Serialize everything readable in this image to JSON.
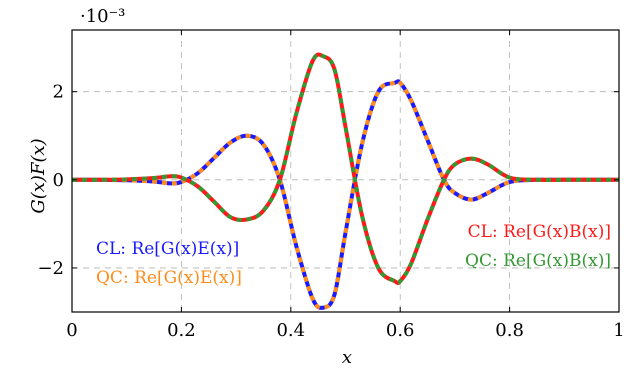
{
  "chart_data": {
    "type": "line",
    "xlabel": "x",
    "ylabel": "G(x)F(x)",
    "y_multiplier": "·10⁻³",
    "xlim": [
      0,
      1
    ],
    "ylim": [
      -3.0,
      3.4
    ],
    "grid": true,
    "grid_style": "dashed",
    "x_ticks": [
      "0",
      "0.2",
      "0.4",
      "0.6",
      "0.8",
      "1"
    ],
    "x_tick_values": [
      0,
      0.2,
      0.4,
      0.6,
      0.8,
      1
    ],
    "y_ticks": [
      "−2",
      "0",
      "2"
    ],
    "y_tick_values": [
      -2,
      0,
      2
    ],
    "series": [
      {
        "name": "CL: Re[G(x)E(x)]",
        "color": "#1a1aff",
        "style": "solid",
        "x": [
          0,
          0.05,
          0.1,
          0.15,
          0.18,
          0.2,
          0.23,
          0.26,
          0.29,
          0.32,
          0.35,
          0.38,
          0.41,
          0.44,
          0.46,
          0.48,
          0.5,
          0.53,
          0.56,
          0.59,
          0.6,
          0.62,
          0.65,
          0.68,
          0.7,
          0.73,
          0.76,
          0.8,
          0.85,
          0.9,
          0.95,
          1.0
        ],
        "y": [
          0,
          0,
          -0.01,
          -0.04,
          -0.08,
          -0.05,
          0.15,
          0.5,
          0.85,
          1.0,
          0.8,
          0.0,
          -1.5,
          -2.7,
          -2.9,
          -2.6,
          -1.2,
          0.8,
          2.0,
          2.2,
          2.2,
          1.8,
          0.9,
          0.0,
          -0.3,
          -0.45,
          -0.3,
          -0.05,
          0,
          0,
          0,
          0
        ]
      },
      {
        "name": "QC: Re[G(x)E(x)]",
        "color": "#ff8c1a",
        "style": "dashed",
        "x": [
          0,
          0.05,
          0.1,
          0.15,
          0.18,
          0.2,
          0.23,
          0.26,
          0.29,
          0.32,
          0.35,
          0.38,
          0.41,
          0.44,
          0.46,
          0.48,
          0.5,
          0.53,
          0.56,
          0.59,
          0.6,
          0.62,
          0.65,
          0.68,
          0.7,
          0.73,
          0.76,
          0.8,
          0.85,
          0.9,
          0.95,
          1.0
        ],
        "y": [
          0,
          0,
          -0.01,
          -0.04,
          -0.08,
          -0.05,
          0.15,
          0.5,
          0.85,
          1.0,
          0.8,
          0.0,
          -1.5,
          -2.7,
          -2.9,
          -2.6,
          -1.2,
          0.8,
          2.0,
          2.2,
          2.2,
          1.8,
          0.9,
          0.0,
          -0.3,
          -0.45,
          -0.3,
          -0.05,
          0,
          0,
          0,
          0
        ]
      },
      {
        "name": "CL: Re[G(x)B(x)]",
        "color": "#ff1a1a",
        "style": "solid",
        "x": [
          0,
          0.05,
          0.1,
          0.15,
          0.18,
          0.2,
          0.23,
          0.26,
          0.29,
          0.32,
          0.35,
          0.38,
          0.41,
          0.44,
          0.46,
          0.48,
          0.5,
          0.53,
          0.56,
          0.59,
          0.6,
          0.62,
          0.65,
          0.68,
          0.7,
          0.73,
          0.76,
          0.8,
          0.85,
          0.9,
          0.95,
          1.0
        ],
        "y": [
          0,
          0,
          0.01,
          0.04,
          0.08,
          0.05,
          -0.15,
          -0.5,
          -0.85,
          -0.9,
          -0.7,
          0.0,
          1.5,
          2.7,
          2.8,
          2.5,
          1.2,
          -0.8,
          -2.0,
          -2.3,
          -2.3,
          -1.9,
          -0.9,
          0.0,
          0.35,
          0.48,
          0.35,
          0.05,
          0,
          0,
          0,
          0
        ]
      },
      {
        "name": "QC: Re[G(x)B(x)]",
        "color": "#339933",
        "style": "dashed",
        "x": [
          0,
          0.05,
          0.1,
          0.15,
          0.18,
          0.2,
          0.23,
          0.26,
          0.29,
          0.32,
          0.35,
          0.38,
          0.41,
          0.44,
          0.46,
          0.48,
          0.5,
          0.53,
          0.56,
          0.59,
          0.6,
          0.62,
          0.65,
          0.68,
          0.7,
          0.73,
          0.76,
          0.8,
          0.85,
          0.9,
          0.95,
          1.0
        ],
        "y": [
          0,
          0,
          0.01,
          0.04,
          0.08,
          0.05,
          -0.15,
          -0.5,
          -0.85,
          -0.9,
          -0.7,
          0.0,
          1.5,
          2.7,
          2.8,
          2.5,
          1.2,
          -0.8,
          -2.0,
          -2.3,
          -2.3,
          -1.9,
          -0.9,
          0.0,
          0.35,
          0.48,
          0.35,
          0.05,
          0,
          0,
          0,
          0
        ]
      }
    ],
    "legends": [
      {
        "position": "bottom-left",
        "entries": [
          {
            "prefix": "CL:",
            "label": "Re[G(x)E(x)]",
            "color": "#1a1aff"
          },
          {
            "prefix": "QC:",
            "label": "Re[G(x)E(x)]",
            "color": "#ff8c1a"
          }
        ]
      },
      {
        "position": "bottom-right",
        "entries": [
          {
            "prefix": "CL:",
            "label": "Re[G(x)B(x)]",
            "color": "#ff1a1a"
          },
          {
            "prefix": "QC:",
            "label": "Re[G(x)B(x)]",
            "color": "#339933"
          }
        ]
      }
    ]
  }
}
